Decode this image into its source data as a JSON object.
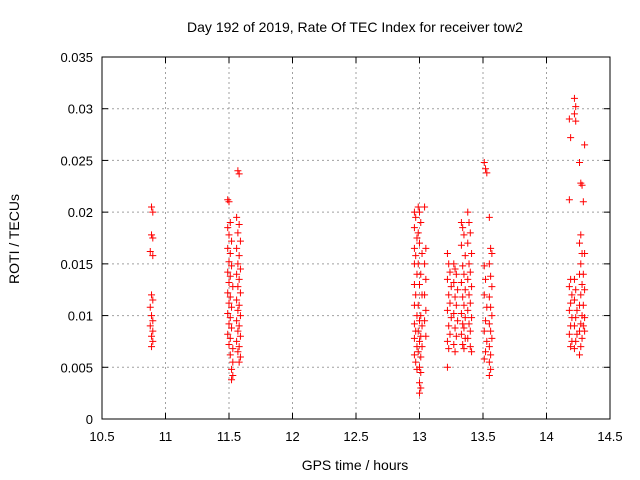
{
  "chart_data": {
    "type": "scatter",
    "title": "Day 192 of 2019, Rate Of TEC Index for receiver tow2",
    "xlabel": "GPS time / hours",
    "ylabel": "ROTI / TECUs",
    "xlim": [
      10.5,
      14.5
    ],
    "ylim": [
      0,
      0.035
    ],
    "grid": true,
    "marker": "+",
    "marker_color": "#ff0000",
    "x_ticks": [
      10.5,
      11,
      11.5,
      12,
      12.5,
      13,
      13.5,
      14,
      14.5
    ],
    "x_tick_labels": [
      "10.5",
      "11",
      "11.5",
      "12",
      "12.5",
      "13",
      "13.5",
      "14",
      "14.5"
    ],
    "y_ticks": [
      0,
      0.005,
      0.01,
      0.015,
      0.02,
      0.025,
      0.03,
      0.035
    ],
    "y_tick_labels": [
      "0",
      "0.005",
      "0.01",
      "0.015",
      "0.02",
      "0.025",
      "0.03",
      "0.035"
    ],
    "series": [
      {
        "name": "ROTI",
        "points": [
          [
            10.89,
            0.0205
          ],
          [
            10.9,
            0.02
          ],
          [
            10.89,
            0.0178
          ],
          [
            10.9,
            0.0175
          ],
          [
            10.88,
            0.0162
          ],
          [
            10.9,
            0.0158
          ],
          [
            10.89,
            0.012
          ],
          [
            10.9,
            0.0115
          ],
          [
            10.88,
            0.0108
          ],
          [
            10.89,
            0.01
          ],
          [
            10.9,
            0.0095
          ],
          [
            10.88,
            0.009
          ],
          [
            10.9,
            0.0085
          ],
          [
            10.89,
            0.008
          ],
          [
            10.9,
            0.0075
          ],
          [
            10.89,
            0.007
          ],
          [
            11.49,
            0.0212
          ],
          [
            11.5,
            0.021
          ],
          [
            11.51,
            0.019
          ],
          [
            11.49,
            0.0185
          ],
          [
            11.5,
            0.0178
          ],
          [
            11.52,
            0.0172
          ],
          [
            11.49,
            0.0165
          ],
          [
            11.51,
            0.016
          ],
          [
            11.5,
            0.0152
          ],
          [
            11.52,
            0.0148
          ],
          [
            11.49,
            0.0142
          ],
          [
            11.51,
            0.0138
          ],
          [
            11.5,
            0.0132
          ],
          [
            11.53,
            0.0128
          ],
          [
            11.49,
            0.0122
          ],
          [
            11.51,
            0.0118
          ],
          [
            11.5,
            0.0112
          ],
          [
            11.52,
            0.0108
          ],
          [
            11.49,
            0.0102
          ],
          [
            11.51,
            0.0098
          ],
          [
            11.5,
            0.0092
          ],
          [
            11.52,
            0.0088
          ],
          [
            11.49,
            0.0082
          ],
          [
            11.51,
            0.0078
          ],
          [
            11.5,
            0.0072
          ],
          [
            11.53,
            0.0068
          ],
          [
            11.51,
            0.0062
          ],
          [
            11.53,
            0.0055
          ],
          [
            11.52,
            0.0048
          ],
          [
            11.53,
            0.0042
          ],
          [
            11.52,
            0.0038
          ],
          [
            11.57,
            0.024
          ],
          [
            11.58,
            0.0237
          ],
          [
            11.56,
            0.0195
          ],
          [
            11.58,
            0.0188
          ],
          [
            11.57,
            0.018
          ],
          [
            11.59,
            0.0172
          ],
          [
            11.56,
            0.0165
          ],
          [
            11.58,
            0.0158
          ],
          [
            11.57,
            0.015
          ],
          [
            11.59,
            0.0145
          ],
          [
            11.56,
            0.014
          ],
          [
            11.58,
            0.0135
          ],
          [
            11.57,
            0.0128
          ],
          [
            11.59,
            0.0122
          ],
          [
            11.56,
            0.0115
          ],
          [
            11.58,
            0.011
          ],
          [
            11.57,
            0.0105
          ],
          [
            11.59,
            0.01
          ],
          [
            11.56,
            0.0095
          ],
          [
            11.58,
            0.009
          ],
          [
            11.57,
            0.0085
          ],
          [
            11.59,
            0.008
          ],
          [
            11.56,
            0.0075
          ],
          [
            11.58,
            0.007
          ],
          [
            11.57,
            0.0065
          ],
          [
            11.59,
            0.006
          ],
          [
            11.58,
            0.0055
          ],
          [
            12.96,
            0.02
          ],
          [
            12.97,
            0.0195
          ],
          [
            12.96,
            0.0185
          ],
          [
            12.98,
            0.0175
          ],
          [
            12.96,
            0.0165
          ],
          [
            12.97,
            0.0158
          ],
          [
            12.96,
            0.015
          ],
          [
            12.98,
            0.014
          ],
          [
            12.96,
            0.013
          ],
          [
            12.97,
            0.012
          ],
          [
            12.96,
            0.011
          ],
          [
            12.98,
            0.01
          ],
          [
            12.96,
            0.0092
          ],
          [
            12.97,
            0.0085
          ],
          [
            12.96,
            0.0078
          ],
          [
            12.98,
            0.007
          ],
          [
            12.96,
            0.0062
          ],
          [
            12.97,
            0.0055
          ],
          [
            12.98,
            0.0048
          ],
          [
            12.99,
            0.0205
          ],
          [
            13.0,
            0.02
          ],
          [
            13.01,
            0.019
          ],
          [
            12.99,
            0.018
          ],
          [
            13.0,
            0.017
          ],
          [
            13.02,
            0.016
          ],
          [
            12.99,
            0.015
          ],
          [
            13.01,
            0.014
          ],
          [
            13.0,
            0.013
          ],
          [
            13.02,
            0.012
          ],
          [
            12.99,
            0.011
          ],
          [
            13.01,
            0.01
          ],
          [
            13.0,
            0.0095
          ],
          [
            13.02,
            0.009
          ],
          [
            12.99,
            0.0085
          ],
          [
            13.01,
            0.008
          ],
          [
            13.0,
            0.0075
          ],
          [
            13.02,
            0.007
          ],
          [
            12.99,
            0.0065
          ],
          [
            13.01,
            0.006
          ],
          [
            13.0,
            0.005
          ],
          [
            13.01,
            0.0045
          ],
          [
            13.0,
            0.0035
          ],
          [
            13.01,
            0.003
          ],
          [
            13.0,
            0.0025
          ],
          [
            13.04,
            0.0205
          ],
          [
            13.05,
            0.0165
          ],
          [
            13.04,
            0.015
          ],
          [
            13.05,
            0.0135
          ],
          [
            13.04,
            0.012
          ],
          [
            13.05,
            0.0105
          ],
          [
            13.04,
            0.0095
          ],
          [
            13.05,
            0.008
          ],
          [
            13.22,
            0.016
          ],
          [
            13.23,
            0.015
          ],
          [
            13.24,
            0.0142
          ],
          [
            13.22,
            0.0135
          ],
          [
            13.25,
            0.0128
          ],
          [
            13.23,
            0.012
          ],
          [
            13.24,
            0.0112
          ],
          [
            13.22,
            0.0105
          ],
          [
            13.25,
            0.0098
          ],
          [
            13.23,
            0.009
          ],
          [
            13.24,
            0.0082
          ],
          [
            13.22,
            0.0075
          ],
          [
            13.23,
            0.0068
          ],
          [
            13.22,
            0.005
          ],
          [
            13.27,
            0.015
          ],
          [
            13.28,
            0.0145
          ],
          [
            13.29,
            0.014
          ],
          [
            13.27,
            0.0132
          ],
          [
            13.3,
            0.0125
          ],
          [
            13.28,
            0.0118
          ],
          [
            13.29,
            0.011
          ],
          [
            13.27,
            0.0102
          ],
          [
            13.3,
            0.0095
          ],
          [
            13.28,
            0.0088
          ],
          [
            13.29,
            0.008
          ],
          [
            13.27,
            0.0072
          ],
          [
            13.28,
            0.0065
          ],
          [
            13.33,
            0.019
          ],
          [
            13.34,
            0.0185
          ],
          [
            13.35,
            0.0178
          ],
          [
            13.33,
            0.0168
          ],
          [
            13.36,
            0.0158
          ],
          [
            13.34,
            0.0148
          ],
          [
            13.35,
            0.014
          ],
          [
            13.33,
            0.0132
          ],
          [
            13.36,
            0.0125
          ],
          [
            13.34,
            0.0118
          ],
          [
            13.35,
            0.011
          ],
          [
            13.33,
            0.0102
          ],
          [
            13.36,
            0.0098
          ],
          [
            13.34,
            0.0092
          ],
          [
            13.35,
            0.0088
          ],
          [
            13.33,
            0.0082
          ],
          [
            13.36,
            0.0078
          ],
          [
            13.34,
            0.0072
          ],
          [
            13.35,
            0.0068
          ],
          [
            13.38,
            0.02
          ],
          [
            13.39,
            0.019
          ],
          [
            13.4,
            0.018
          ],
          [
            13.38,
            0.017
          ],
          [
            13.41,
            0.016
          ],
          [
            13.39,
            0.015
          ],
          [
            13.4,
            0.0142
          ],
          [
            13.38,
            0.0135
          ],
          [
            13.41,
            0.0128
          ],
          [
            13.39,
            0.012
          ],
          [
            13.4,
            0.0112
          ],
          [
            13.38,
            0.0105
          ],
          [
            13.41,
            0.0098
          ],
          [
            13.39,
            0.0092
          ],
          [
            13.4,
            0.0085
          ],
          [
            13.38,
            0.0078
          ],
          [
            13.4,
            0.007
          ],
          [
            13.41,
            0.0065
          ],
          [
            13.51,
            0.0248
          ],
          [
            13.52,
            0.0242
          ],
          [
            13.53,
            0.0238
          ],
          [
            13.51,
            0.0148
          ],
          [
            13.52,
            0.0135
          ],
          [
            13.51,
            0.012
          ],
          [
            13.53,
            0.0108
          ],
          [
            13.52,
            0.0095
          ],
          [
            13.51,
            0.0085
          ],
          [
            13.53,
            0.0075
          ],
          [
            13.52,
            0.0065
          ],
          [
            13.51,
            0.0058
          ],
          [
            13.55,
            0.0195
          ],
          [
            13.56,
            0.0165
          ],
          [
            13.57,
            0.016
          ],
          [
            13.55,
            0.015
          ],
          [
            13.56,
            0.0138
          ],
          [
            13.57,
            0.0128
          ],
          [
            13.55,
            0.0118
          ],
          [
            13.56,
            0.0108
          ],
          [
            13.57,
            0.01
          ],
          [
            13.55,
            0.0092
          ],
          [
            13.56,
            0.0085
          ],
          [
            13.57,
            0.0078
          ],
          [
            13.55,
            0.007
          ],
          [
            13.56,
            0.0062
          ],
          [
            13.55,
            0.0055
          ],
          [
            13.56,
            0.0048
          ],
          [
            13.55,
            0.0042
          ],
          [
            14.18,
            0.029
          ],
          [
            14.19,
            0.0272
          ],
          [
            14.18,
            0.0212
          ],
          [
            14.19,
            0.0135
          ],
          [
            14.18,
            0.0128
          ],
          [
            14.2,
            0.012
          ],
          [
            14.19,
            0.0112
          ],
          [
            14.18,
            0.0105
          ],
          [
            14.2,
            0.0098
          ],
          [
            14.19,
            0.009
          ],
          [
            14.18,
            0.0082
          ],
          [
            14.2,
            0.0075
          ],
          [
            14.19,
            0.007
          ],
          [
            14.22,
            0.031
          ],
          [
            14.23,
            0.0302
          ],
          [
            14.22,
            0.0295
          ],
          [
            14.23,
            0.0288
          ],
          [
            14.22,
            0.0135
          ],
          [
            14.23,
            0.0125
          ],
          [
            14.22,
            0.0115
          ],
          [
            14.24,
            0.0105
          ],
          [
            14.23,
            0.0098
          ],
          [
            14.22,
            0.009
          ],
          [
            14.24,
            0.0082
          ],
          [
            14.23,
            0.0075
          ],
          [
            14.22,
            0.0068
          ],
          [
            14.26,
            0.0248
          ],
          [
            14.27,
            0.0228
          ],
          [
            14.28,
            0.0226
          ],
          [
            14.27,
            0.0178
          ],
          [
            14.26,
            0.017
          ],
          [
            14.28,
            0.016
          ],
          [
            14.27,
            0.015
          ],
          [
            14.26,
            0.014
          ],
          [
            14.28,
            0.013
          ],
          [
            14.27,
            0.012
          ],
          [
            14.26,
            0.011
          ],
          [
            14.28,
            0.01
          ],
          [
            14.27,
            0.0092
          ],
          [
            14.26,
            0.0085
          ],
          [
            14.28,
            0.0078
          ],
          [
            14.27,
            0.007
          ],
          [
            14.26,
            0.0062
          ],
          [
            14.3,
            0.0265
          ],
          [
            14.29,
            0.021
          ],
          [
            14.3,
            0.016
          ],
          [
            14.29,
            0.014
          ],
          [
            14.3,
            0.0125
          ],
          [
            14.29,
            0.011
          ],
          [
            14.3,
            0.0098
          ],
          [
            14.29,
            0.009
          ],
          [
            14.3,
            0.0085
          ]
        ]
      }
    ]
  }
}
